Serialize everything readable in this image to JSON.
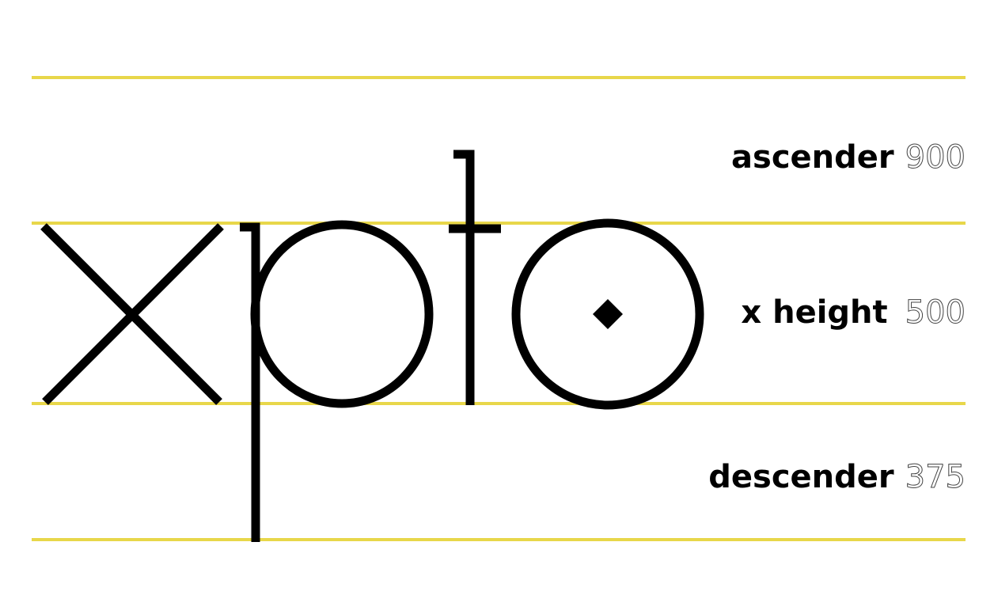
{
  "colors": {
    "guide_line": "#e8d74a",
    "glyph": "#000000",
    "label": "#000000",
    "value": "#444444"
  },
  "specimen": {
    "word": "xpto",
    "letters": [
      "x",
      "p",
      "t",
      "o"
    ]
  },
  "metrics": {
    "ascender": {
      "label": "ascender",
      "value": "900"
    },
    "x_height": {
      "label": "x height",
      "value": "500"
    },
    "descender": {
      "label": "descender",
      "value": "375"
    }
  },
  "icons": {
    "diamond": "diamond-icon"
  }
}
